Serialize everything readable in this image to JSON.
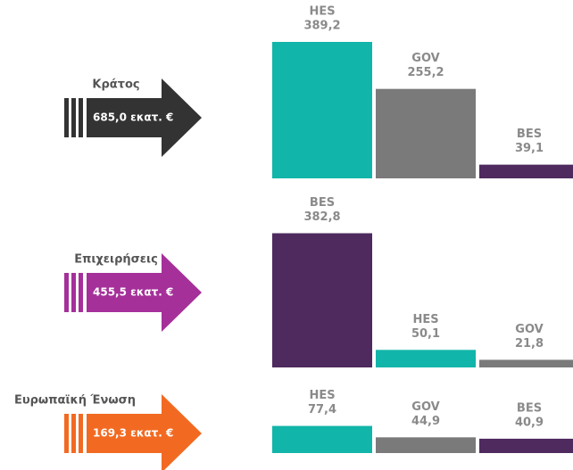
{
  "chart_data": [
    {
      "type": "bar",
      "title": "Κράτος",
      "subtitle": "685,0 εκατ. €",
      "arrow_color": "#333333",
      "categories": [
        "HES",
        "GOV",
        "BES"
      ],
      "values": [
        389.2,
        255.2,
        39.1
      ],
      "value_labels": [
        "389,2",
        "255,2",
        "39,1"
      ],
      "colors": [
        "#12b5a9",
        "#7a7a7a",
        "#4e2a5e"
      ]
    },
    {
      "type": "bar",
      "title": "Επιχειρήσεις",
      "subtitle": "455,5 εκατ. €",
      "arrow_color": "#a5309a",
      "categories": [
        "BES",
        "HES",
        "GOV"
      ],
      "values": [
        382.8,
        50.1,
        21.8
      ],
      "value_labels": [
        "382,8",
        "50,1",
        "21,8"
      ],
      "colors": [
        "#4e2a5e",
        "#12b5a9",
        "#7a7a7a"
      ]
    },
    {
      "type": "bar",
      "title": "Ευρωπαϊκή Ένωση",
      "subtitle": "169,3 εκατ. €",
      "arrow_color": "#f26a21",
      "categories": [
        "HES",
        "GOV",
        "BES"
      ],
      "values": [
        77.4,
        44.9,
        40.9
      ],
      "value_labels": [
        "77,4",
        "44,9",
        "40,9"
      ],
      "colors": [
        "#12b5a9",
        "#7a7a7a",
        "#4e2a5e"
      ]
    }
  ]
}
